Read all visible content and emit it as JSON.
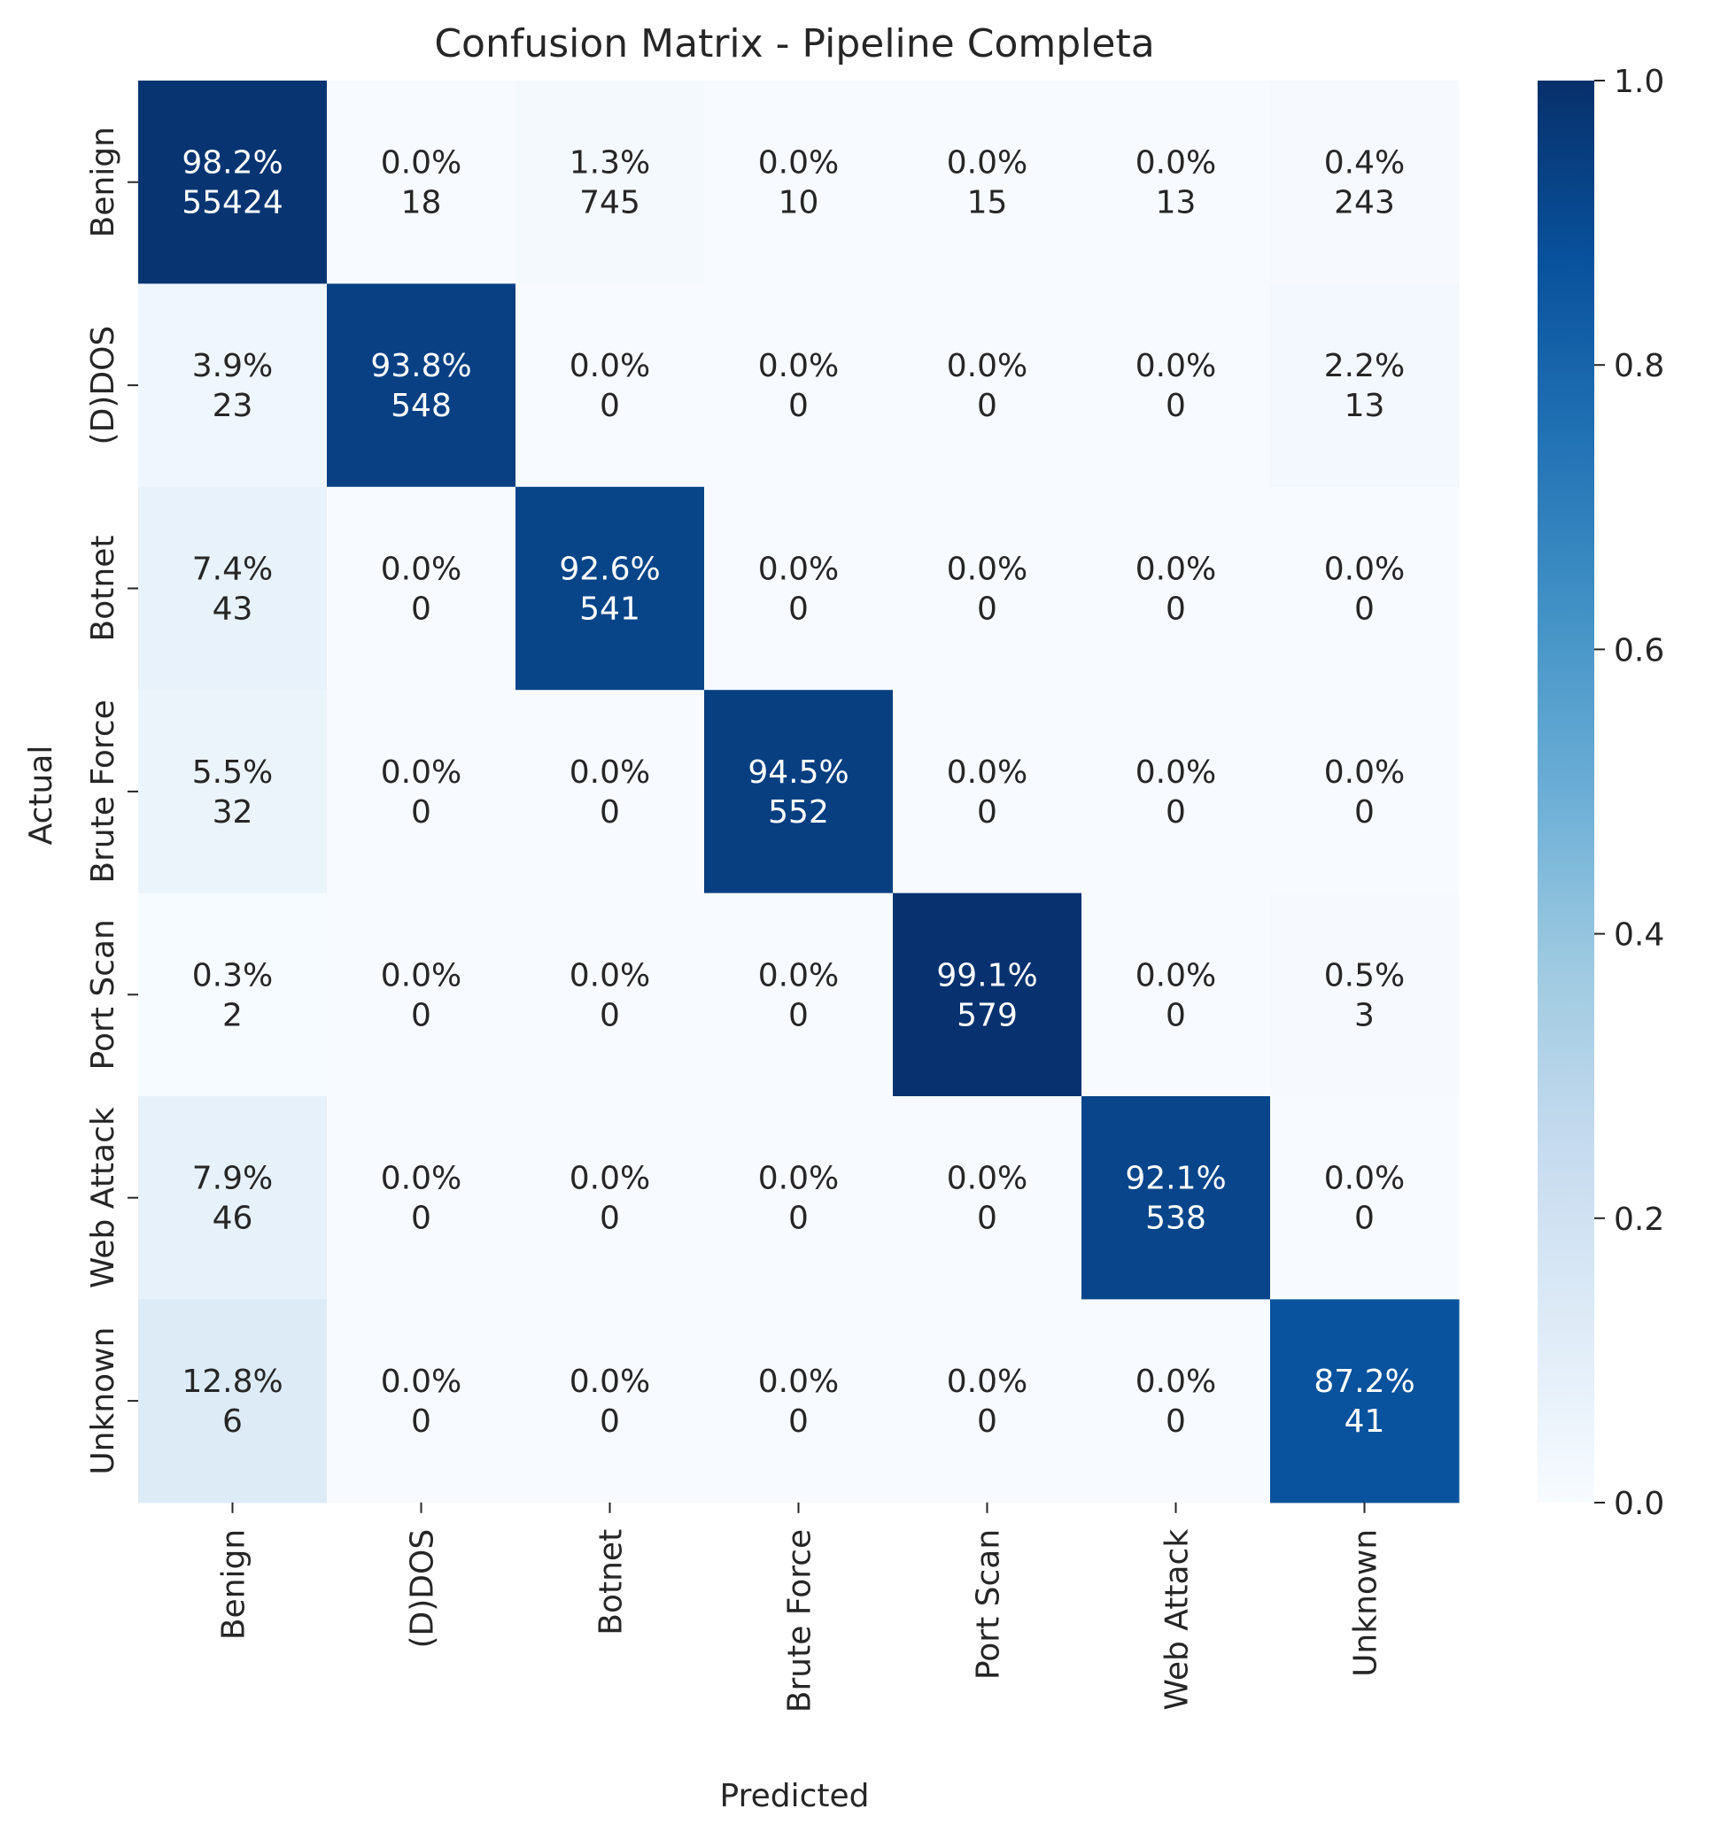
{
  "chart_data": {
    "type": "heatmap",
    "title": "Confusion Matrix - Pipeline Completa",
    "xlabel": "Predicted",
    "ylabel": "Actual",
    "x_categories": [
      "Benign",
      "(D)DOS",
      "Botnet",
      "Brute Force",
      "Port Scan",
      "Web Attack",
      "Unknown"
    ],
    "y_categories": [
      "Benign",
      "(D)DOS",
      "Botnet",
      "Brute Force",
      "Port Scan",
      "Web Attack",
      "Unknown"
    ],
    "values": [
      [
        0.982,
        0.0,
        0.013,
        0.0,
        0.0,
        0.0,
        0.004
      ],
      [
        0.039,
        0.938,
        0.0,
        0.0,
        0.0,
        0.0,
        0.022
      ],
      [
        0.074,
        0.0,
        0.926,
        0.0,
        0.0,
        0.0,
        0.0
      ],
      [
        0.055,
        0.0,
        0.0,
        0.945,
        0.0,
        0.0,
        0.0
      ],
      [
        0.003,
        0.0,
        0.0,
        0.0,
        0.991,
        0.0,
        0.005
      ],
      [
        0.079,
        0.0,
        0.0,
        0.0,
        0.0,
        0.921,
        0.0
      ],
      [
        0.128,
        0.0,
        0.0,
        0.0,
        0.0,
        0.0,
        0.872
      ]
    ],
    "percent_labels": [
      [
        "98.2%",
        "0.0%",
        "1.3%",
        "0.0%",
        "0.0%",
        "0.0%",
        "0.4%"
      ],
      [
        "3.9%",
        "93.8%",
        "0.0%",
        "0.0%",
        "0.0%",
        "0.0%",
        "2.2%"
      ],
      [
        "7.4%",
        "0.0%",
        "92.6%",
        "0.0%",
        "0.0%",
        "0.0%",
        "0.0%"
      ],
      [
        "5.5%",
        "0.0%",
        "0.0%",
        "94.5%",
        "0.0%",
        "0.0%",
        "0.0%"
      ],
      [
        "0.3%",
        "0.0%",
        "0.0%",
        "0.0%",
        "99.1%",
        "0.0%",
        "0.5%"
      ],
      [
        "7.9%",
        "0.0%",
        "0.0%",
        "0.0%",
        "0.0%",
        "92.1%",
        "0.0%"
      ],
      [
        "12.8%",
        "0.0%",
        "0.0%",
        "0.0%",
        "0.0%",
        "0.0%",
        "87.2%"
      ]
    ],
    "counts": [
      [
        55424,
        18,
        745,
        10,
        15,
        13,
        243
      ],
      [
        23,
        548,
        0,
        0,
        0,
        0,
        13
      ],
      [
        43,
        0,
        541,
        0,
        0,
        0,
        0
      ],
      [
        32,
        0,
        0,
        552,
        0,
        0,
        0
      ],
      [
        2,
        0,
        0,
        0,
        579,
        0,
        3
      ],
      [
        46,
        0,
        0,
        0,
        0,
        538,
        0
      ],
      [
        6,
        0,
        0,
        0,
        0,
        0,
        41
      ]
    ],
    "colorbar": {
      "range": [
        0.0,
        1.0
      ],
      "ticks": [
        0.0,
        0.2,
        0.4,
        0.6,
        0.8,
        1.0
      ],
      "tick_labels": [
        "0.0",
        "0.2",
        "0.4",
        "0.6",
        "0.8",
        "1.0"
      ],
      "colormap": "Blues"
    },
    "grid": false
  }
}
